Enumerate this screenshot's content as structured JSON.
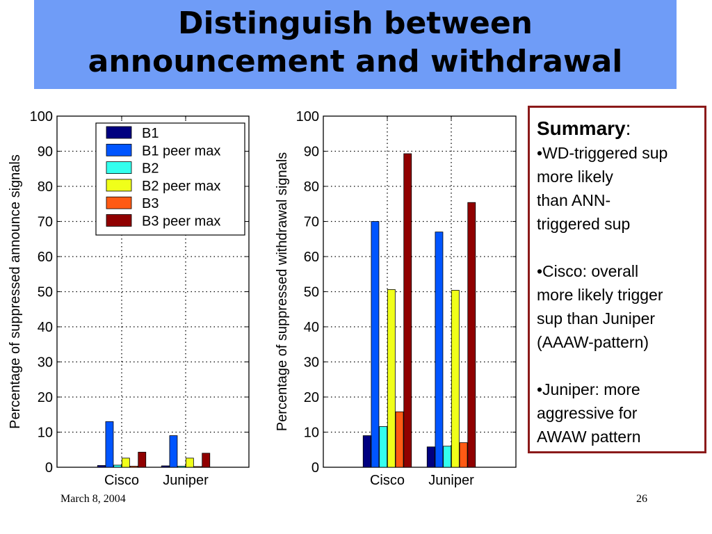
{
  "slide": {
    "title_line1": "Distinguish between",
    "title_line2": "announcement and withdrawal",
    "date": "March 8, 2004",
    "page": "26"
  },
  "summary": {
    "heading": "Summary",
    "heading_colon": ":",
    "point1": [
      "•WD-triggered sup",
      "more likely",
      "than ANN-",
      "triggered sup"
    ],
    "point2": [
      "•Cisco: overall",
      "more likely trigger",
      "sup than Juniper",
      "(AAAW-pattern)"
    ],
    "point3": [
      "•Juniper: more",
      "aggressive for",
      "AWAW pattern"
    ]
  },
  "chart_data": [
    {
      "type": "bar",
      "categories": [
        "Cisco",
        "Juniper"
      ],
      "ylabel": "Percentage of suppressed announce signals",
      "ylim": [
        0,
        100
      ],
      "yticks": [
        0,
        10,
        20,
        30,
        40,
        50,
        60,
        70,
        80,
        90,
        100
      ],
      "grid": true,
      "legend": "top",
      "series": [
        {
          "name": "B1",
          "color": "#000080",
          "values": [
            0.5,
            0.4
          ]
        },
        {
          "name": "B1 peer max",
          "color": "#0055ff",
          "values": [
            13,
            9
          ]
        },
        {
          "name": "B2",
          "color": "#33ffee",
          "values": [
            0.6,
            0.3
          ]
        },
        {
          "name": "B2 peer max",
          "color": "#f0ff1a",
          "values": [
            2.6,
            2.6
          ]
        },
        {
          "name": "B3",
          "color": "#ff5a14",
          "values": [
            0.3,
            0.2
          ]
        },
        {
          "name": "B3 peer max",
          "color": "#900000",
          "values": [
            4.3,
            4.0
          ]
        }
      ]
    },
    {
      "type": "bar",
      "categories": [
        "Cisco",
        "Juniper"
      ],
      "ylabel": "Percentage of suppressed withdrawal signals",
      "ylim": [
        0,
        100
      ],
      "yticks": [
        0,
        10,
        20,
        30,
        40,
        50,
        60,
        70,
        80,
        90,
        100
      ],
      "grid": true,
      "series": [
        {
          "name": "B1",
          "color": "#000080",
          "values": [
            9,
            5.8
          ]
        },
        {
          "name": "B1 peer max",
          "color": "#0055ff",
          "values": [
            70,
            67
          ]
        },
        {
          "name": "B2",
          "color": "#33ffee",
          "values": [
            11.6,
            6
          ]
        },
        {
          "name": "B2 peer max",
          "color": "#f0ff1a",
          "values": [
            50.6,
            50.4
          ]
        },
        {
          "name": "B3",
          "color": "#ff5a14",
          "values": [
            15.8,
            7
          ]
        },
        {
          "name": "B3 peer max",
          "color": "#900000",
          "values": [
            89.3,
            75.4
          ]
        }
      ]
    }
  ]
}
